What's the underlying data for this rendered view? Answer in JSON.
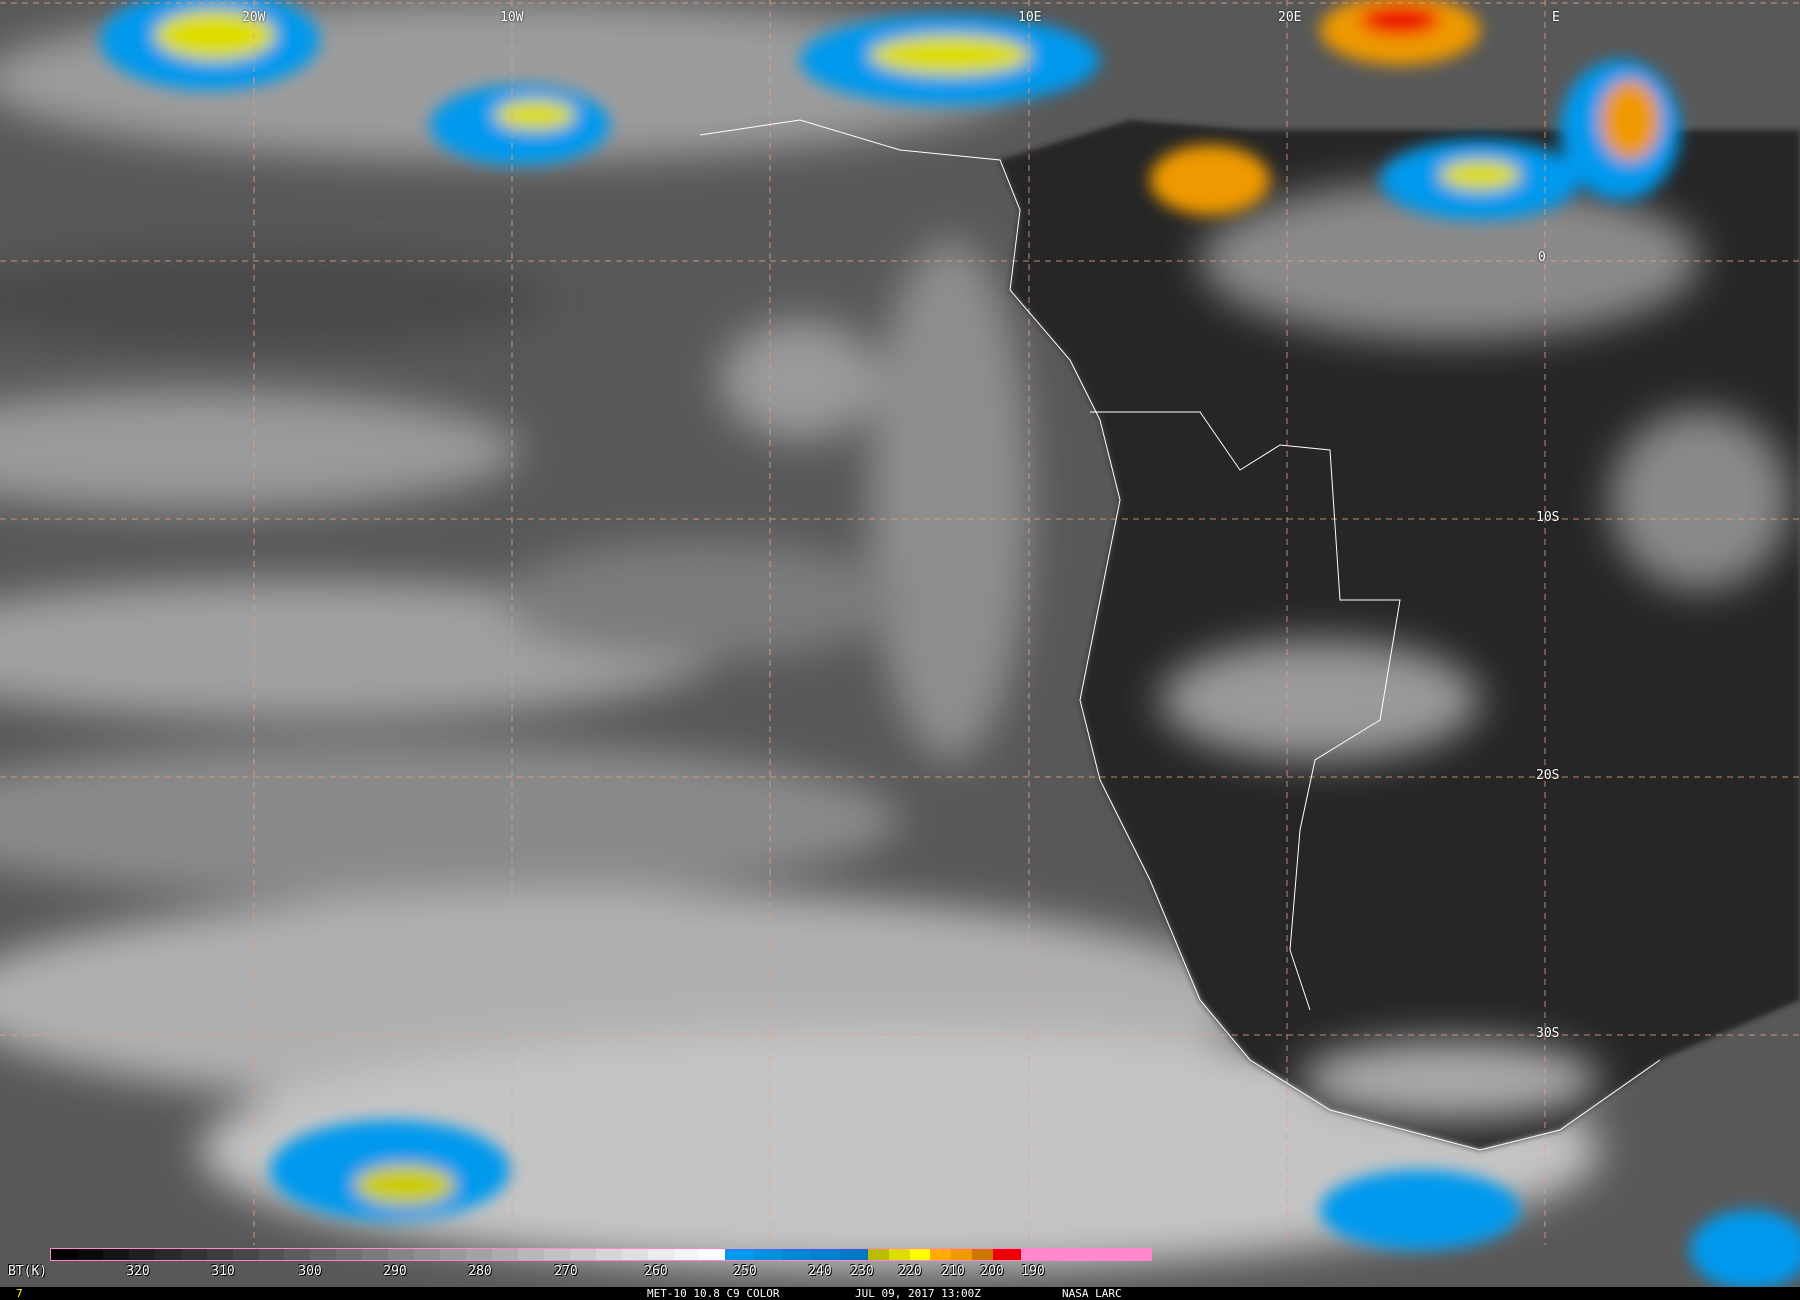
{
  "map": {
    "longitude_labels": [
      "20W",
      "10W",
      "10E",
      "20E",
      "E"
    ],
    "latitude_labels": [
      "0",
      "10S",
      "20S",
      "30S"
    ],
    "gridline_color": "#e8a080",
    "border_color": "#ffffff"
  },
  "colorbar": {
    "unit_label": "BT(K)",
    "ticks": [
      "320",
      "310",
      "300",
      "290",
      "280",
      "270",
      "260",
      "250",
      "240",
      "230",
      "220",
      "210",
      "200",
      "190"
    ],
    "colors": {
      "warm_gray_start": "#000000",
      "gray_end": "#ffffff",
      "blue": "#0099ee",
      "yellow": "#eeee00",
      "orange": "#ee9900",
      "red": "#ee0000",
      "pink": "#ff88cc"
    }
  },
  "footer": {
    "frame_number": "7",
    "product": "MET-10 10.8 C9 COLOR",
    "datetime": "JUL 09, 2017 13:00Z",
    "credit": "NASA LARC"
  }
}
